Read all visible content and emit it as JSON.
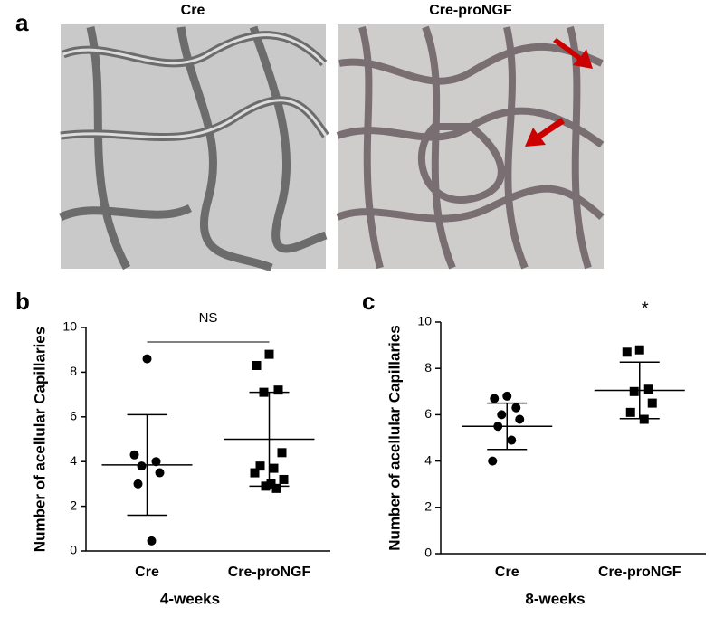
{
  "panel_a": {
    "label": "a",
    "images": [
      "Cre",
      "Cre-proNGF"
    ]
  },
  "chart_data": [
    {
      "type": "dot",
      "panel": "b",
      "ylabel": "Number of acellular Capillaries",
      "xlabel": "4-weeks",
      "categories": [
        "Cre",
        "Cre-proNGF"
      ],
      "markers": [
        "circle",
        "square"
      ],
      "color": "#000000",
      "points": [
        [
          8.6,
          4.3,
          4.0,
          3.8,
          3.5,
          3.0,
          0.45
        ],
        [
          8.8,
          8.3,
          7.2,
          7.1,
          4.4,
          3.8,
          3.7,
          3.5,
          3.2,
          3.0,
          2.9,
          2.8
        ]
      ],
      "mean": [
        3.85,
        5.0
      ],
      "sd": [
        2.25,
        2.1
      ],
      "annotation": "NS",
      "ylim": [
        0,
        10
      ],
      "yticks": [
        0,
        2,
        4,
        6,
        8,
        10
      ]
    },
    {
      "type": "dot",
      "panel": "c",
      "ylabel": "Number of acellular Capillaries",
      "xlabel": "8-weeks",
      "categories": [
        "Cre",
        "Cre-proNGF"
      ],
      "markers": [
        "circle",
        "square"
      ],
      "color": "#000000",
      "points": [
        [
          6.8,
          6.7,
          6.3,
          6.0,
          5.8,
          5.5,
          4.9,
          4.0
        ],
        [
          8.8,
          8.7,
          7.1,
          7.0,
          6.5,
          6.1,
          5.8
        ]
      ],
      "mean": [
        5.5,
        7.05
      ],
      "sd": [
        1.0,
        1.22
      ],
      "annotation": "*",
      "ylim": [
        0,
        10
      ],
      "yticks": [
        0,
        2,
        4,
        6,
        8,
        10
      ]
    }
  ]
}
